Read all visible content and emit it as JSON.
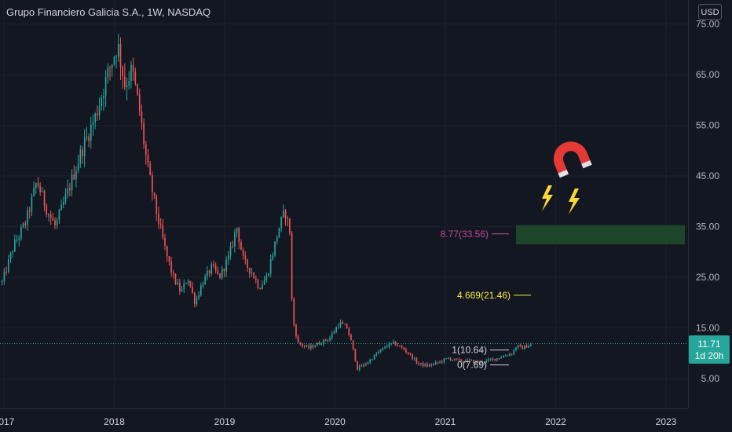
{
  "header": {
    "title": "Grupo Financiero Galicia S.A., 1W, NASDAQ",
    "currency": "USD"
  },
  "price_badge": {
    "price": "11.71",
    "countdown": "1d 20h"
  },
  "colors": {
    "up": "#26a69a",
    "down": "#ef5350",
    "background": "#131722",
    "axis_text": "#b2b5be",
    "fib_low": "#d1d4dc",
    "fib_mid": "#fbe83a",
    "fib_high": "#c2489a",
    "zone": "#1e4d2b",
    "badge": "#26a69a"
  },
  "chart_data": {
    "type": "candlestick",
    "interval": "1W",
    "y_ticks": [
      "75.00",
      "65.00",
      "55.00",
      "45.00",
      "35.00",
      "25.00",
      "15.00",
      "5.00"
    ],
    "x_ticks": [
      "2017",
      "2018",
      "2019",
      "2020",
      "2021",
      "2022",
      "2023"
    ],
    "last_price": 11.71,
    "anchors": [
      [
        "2016-12-26",
        24
      ],
      [
        "2017-02-01",
        31
      ],
      [
        "2017-03-15",
        36
      ],
      [
        "2017-04-20",
        44
      ],
      [
        "2017-05-25",
        38
      ],
      [
        "2017-06-20",
        35
      ],
      [
        "2017-08-01",
        42
      ],
      [
        "2017-09-15",
        50
      ],
      [
        "2017-11-01",
        57
      ],
      [
        "2017-12-10",
        65
      ],
      [
        "2018-01-12",
        71
      ],
      [
        "2018-02-05",
        63
      ],
      [
        "2018-03-01",
        66
      ],
      [
        "2018-03-25",
        58
      ],
      [
        "2018-04-20",
        47
      ],
      [
        "2018-05-20",
        38
      ],
      [
        "2018-06-20",
        30
      ],
      [
        "2018-07-15",
        25
      ],
      [
        "2018-08-10",
        22
      ],
      [
        "2018-09-01",
        25
      ],
      [
        "2018-09-25",
        20
      ],
      [
        "2018-10-20",
        24
      ],
      [
        "2018-11-20",
        27
      ],
      [
        "2018-12-15",
        25
      ],
      [
        "2019-01-15",
        29
      ],
      [
        "2019-02-10",
        35
      ],
      [
        "2019-03-05",
        28
      ],
      [
        "2019-04-01",
        26
      ],
      [
        "2019-04-25",
        23
      ],
      [
        "2019-05-20",
        25
      ],
      [
        "2019-06-10",
        30
      ],
      [
        "2019-07-01",
        35
      ],
      [
        "2019-07-20",
        38
      ],
      [
        "2019-08-05",
        34
      ],
      [
        "2019-08-13",
        17
      ],
      [
        "2019-09-01",
        12
      ],
      [
        "2019-10-05",
        11
      ],
      [
        "2019-11-10",
        12
      ],
      [
        "2019-12-15",
        13
      ],
      [
        "2020-01-15",
        16
      ],
      [
        "2020-02-10",
        15
      ],
      [
        "2020-02-25",
        12
      ],
      [
        "2020-03-15",
        7
      ],
      [
        "2020-04-15",
        8
      ],
      [
        "2020-05-20",
        10
      ],
      [
        "2020-06-20",
        11.5
      ],
      [
        "2020-07-15",
        12
      ],
      [
        "2020-08-10",
        11
      ],
      [
        "2020-09-01",
        10
      ],
      [
        "2020-10-01",
        8
      ],
      [
        "2020-11-01",
        7.5
      ],
      [
        "2020-12-01",
        8
      ],
      [
        "2021-01-10",
        9
      ],
      [
        "2021-02-15",
        8.5
      ],
      [
        "2021-03-20",
        8.5
      ],
      [
        "2021-04-20",
        8.2
      ],
      [
        "2021-05-20",
        8.5
      ],
      [
        "2021-06-20",
        9
      ],
      [
        "2021-07-15",
        9.5
      ],
      [
        "2021-08-10",
        10
      ],
      [
        "2021-08-25",
        11.5
      ],
      [
        "2021-09-10",
        11
      ],
      [
        "2021-10-01",
        11.5
      ],
      [
        "2021-10-15",
        11.71
      ]
    ],
    "fib_levels": [
      {
        "ratio": "0",
        "price": "7.69",
        "label": "0(7.69)"
      },
      {
        "ratio": "1",
        "price": "10.64",
        "label": "1(10.64)"
      },
      {
        "ratio": "4.669",
        "price": "21.46",
        "label": "4.669(21.46)"
      },
      {
        "ratio": "8.77",
        "price": "33.56",
        "label": "8.77(33.56)"
      }
    ],
    "target_zone": {
      "price_low": 31.5,
      "price_high": 35.3
    },
    "decorations": {
      "magnet": "magnet-icon",
      "bolts": [
        "lightning-icon",
        "lightning-icon"
      ]
    }
  }
}
